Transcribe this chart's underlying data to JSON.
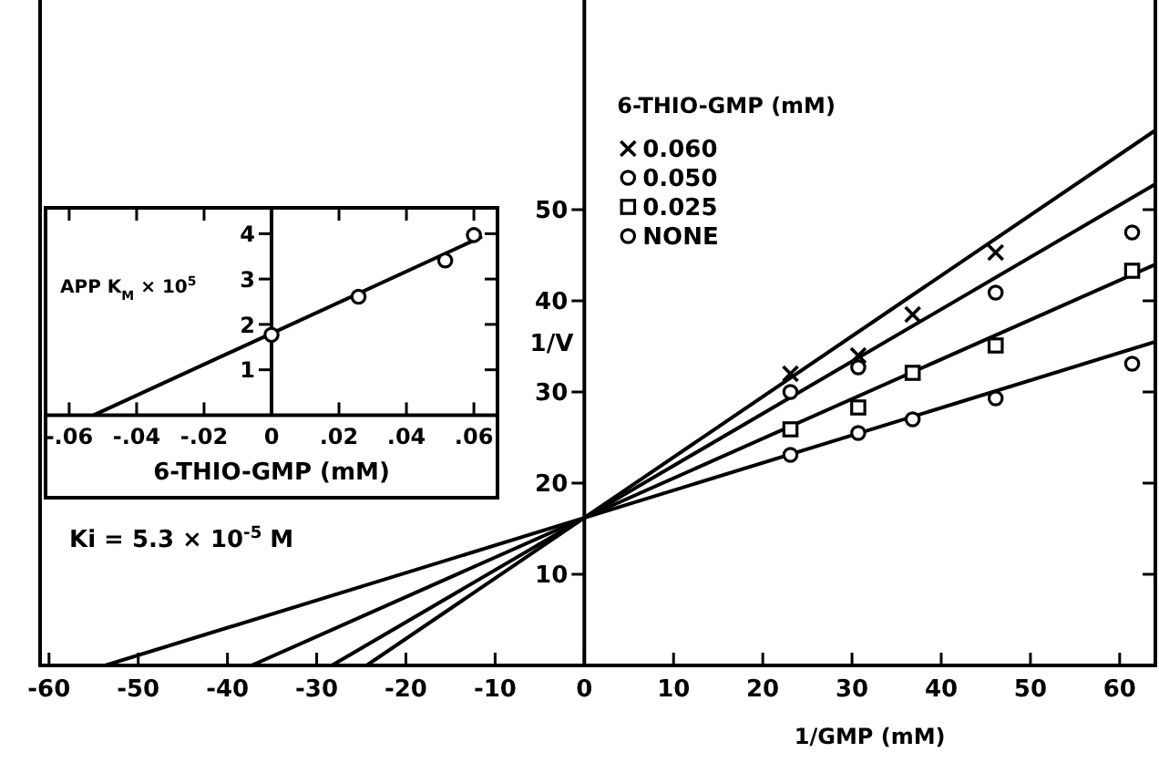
{
  "chart_data": [
    {
      "type": "scatter",
      "xlabel": "1/GMP (mM)",
      "ylabel": "1/V",
      "legend_title": "6-THIO-GMP (mM)",
      "legend": "top",
      "annotations": [
        "Ki = 5.3 × 10$^{-5}$ M"
      ],
      "xlim": [
        -61,
        64
      ],
      "ylim": [
        0,
        73
      ],
      "xticks": [
        -60,
        -50,
        -40,
        -30,
        -20,
        -10,
        0,
        10,
        20,
        30,
        40,
        50,
        60
      ],
      "yticks": [
        10,
        20,
        30,
        40,
        50
      ],
      "series": [
        {
          "name": "0.060",
          "color": "#000000",
          "marker": "cross",
          "x": [
            23.1,
            30.7,
            36.8,
            46.1
          ],
          "values": [
            32.0,
            34.0,
            38.5,
            45.3
          ]
        },
        {
          "name": "0.050",
          "color": "#000000",
          "marker": "circle",
          "x": [
            23.1,
            30.7,
            46.1,
            61.4
          ],
          "values": [
            30.0,
            32.7,
            40.9,
            47.5
          ]
        },
        {
          "name": "0.025",
          "color": "#000000",
          "marker": "square",
          "x": [
            23.1,
            30.7,
            36.8,
            46.1,
            61.4
          ],
          "values": [
            25.9,
            28.3,
            32.1,
            35.1,
            43.3
          ]
        },
        {
          "name": "NONE",
          "color": "#000000",
          "marker": "circle",
          "x": [
            23.1,
            30.7,
            36.8,
            46.1,
            61.4
          ],
          "values": [
            23.1,
            25.5,
            27.0,
            29.3,
            33.1
          ]
        },
        {
          "type": "line",
          "color": "#000000",
          "x": [
            -24.4,
            64
          ],
          "values": [
            0,
            58.7
          ]
        },
        {
          "type": "line",
          "color": "#000000",
          "x": [
            -28.3,
            64
          ],
          "values": [
            0,
            52.8
          ]
        },
        {
          "type": "line",
          "color": "#000000",
          "x": [
            -37.3,
            64
          ],
          "values": [
            0,
            44.0
          ]
        },
        {
          "type": "line",
          "color": "#000000",
          "x": [
            -53.7,
            64
          ],
          "values": [
            0,
            35.5
          ]
        }
      ]
    },
    {
      "type": "scatter",
      "xlabel": "6-THIO-GMP (mM)",
      "ylabel": "APP K$_{M}$ × 10$^{5}$",
      "xlim": [
        -0.067,
        0.067
      ],
      "ylim": [
        0,
        4.57
      ],
      "xticks": [
        {
          "value": -0.06,
          "label": "-.06"
        },
        {
          "value": -0.04,
          "label": "-.04"
        },
        {
          "value": -0.02,
          "label": "-.02"
        },
        0,
        {
          "value": 0.02,
          "label": ".02"
        },
        {
          "value": 0.04,
          "label": ".04"
        },
        {
          "value": 0.06,
          "label": ".06"
        }
      ],
      "yticks": [
        1,
        2,
        3,
        4
      ],
      "series": [
        {
          "color": "#000000",
          "marker": "circle",
          "x": [
            0,
            0.0258,
            0.0515,
            0.06
          ],
          "values": [
            1.77,
            2.61,
            3.41,
            3.97
          ]
        },
        {
          "type": "line",
          "color": "#000000",
          "x": [
            -0.0527,
            0.062
          ],
          "values": [
            0,
            3.92
          ]
        }
      ]
    }
  ]
}
